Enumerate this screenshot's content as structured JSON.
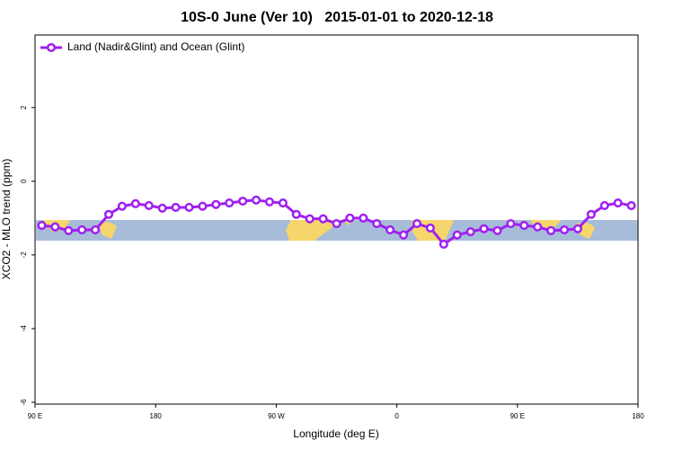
{
  "chart_data": {
    "type": "line",
    "title": "10S-0 June (Ver 10)   2015-01-01 to 2020-12-18",
    "x_label": "Longitude (deg E)",
    "y_label": "XCO2 - MLO trend (ppm)",
    "x": [
      95,
      105,
      115,
      125,
      135,
      145,
      155,
      165,
      175,
      185,
      195,
      205,
      215,
      225,
      235,
      245,
      255,
      265,
      275,
      285,
      295,
      305,
      315,
      325,
      335,
      345,
      355,
      365,
      375,
      385,
      395,
      405,
      415,
      425,
      435,
      445,
      455,
      465,
      475,
      485,
      495,
      505,
      515,
      525,
      535
    ],
    "series": [
      {
        "name": "Land (Nadir&Glint) and Ocean (Glint)",
        "color": "#a020f0",
        "values": [
          -1.2,
          -1.24,
          -1.34,
          -1.32,
          -1.32,
          -0.9,
          -0.68,
          -0.61,
          -0.66,
          -0.73,
          -0.71,
          -0.71,
          -0.68,
          -0.63,
          -0.59,
          -0.54,
          -0.51,
          -0.56,
          -0.59,
          -0.9,
          -1.02,
          -1.02,
          -1.15,
          -1.0,
          -1.0,
          -1.15,
          -1.32,
          -1.46,
          -1.15,
          -1.27,
          -1.71,
          -1.46,
          -1.37,
          -1.29,
          -1.34,
          -1.15,
          -1.2,
          -1.24,
          -1.34,
          -1.32,
          -1.29,
          -0.9,
          -0.66,
          -0.59,
          -0.66
        ]
      }
    ],
    "xlim": [
      90,
      540
    ],
    "xticks": [
      {
        "value": 90,
        "label": "90 E"
      },
      180,
      {
        "value": 270,
        "label": "90 W"
      },
      {
        "value": 360,
        "label": "0"
      },
      {
        "value": 450,
        "label": "90 E"
      },
      {
        "value": 540,
        "label": "180"
      }
    ],
    "ylim": [
      -6.05,
      3.97
    ],
    "yticks": [
      -6,
      -4,
      -2,
      0,
      2
    ],
    "legend_position": "top-left"
  }
}
